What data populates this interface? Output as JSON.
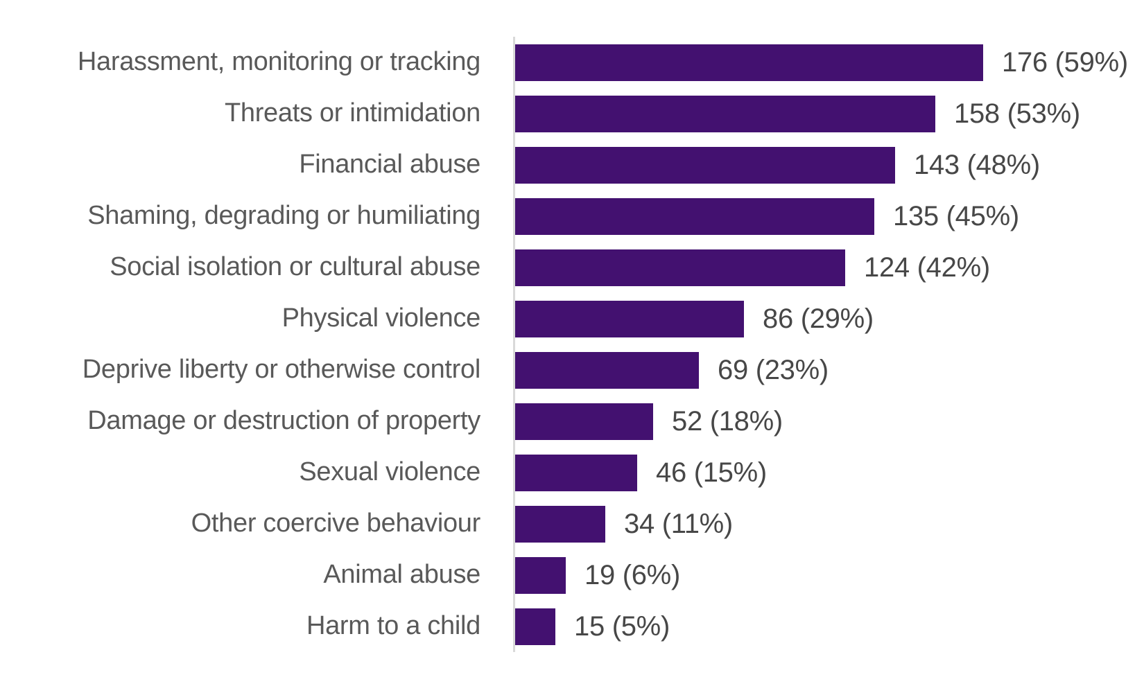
{
  "chart_data": {
    "type": "bar",
    "orientation": "horizontal",
    "title": "",
    "xlabel": "",
    "ylabel": "",
    "grid": false,
    "legend": null,
    "xlim": [
      0,
      176
    ],
    "categories": [
      "Harassment, monitoring or tracking",
      "Threats or intimidation",
      "Financial abuse",
      "Shaming, degrading or humiliating",
      "Social isolation or cultural abuse",
      "Physical violence",
      "Deprive liberty or otherwise control",
      "Damage or destruction of property",
      "Sexual violence",
      "Other coercive behaviour",
      "Animal abuse",
      "Harm to a child"
    ],
    "values": [
      176,
      158,
      143,
      135,
      124,
      86,
      69,
      52,
      46,
      34,
      19,
      15
    ],
    "percentages": [
      59,
      53,
      48,
      45,
      42,
      29,
      23,
      18,
      15,
      11,
      6,
      5
    ],
    "value_labels": [
      "176 (59%)",
      "158 (53%)",
      "143 (48%)",
      "135 (45%)",
      "124 (42%)",
      "86 (29%)",
      "69 (23%)",
      "52 (18%)",
      "46 (15%)",
      "34 (11%)",
      "19 (6%)",
      "15 (5%)"
    ],
    "colors": {
      "bar": "#431170",
      "category_text": "#595959",
      "value_text": "#474747",
      "axis_line": "#d9d9d9",
      "background": "#ffffff"
    }
  }
}
